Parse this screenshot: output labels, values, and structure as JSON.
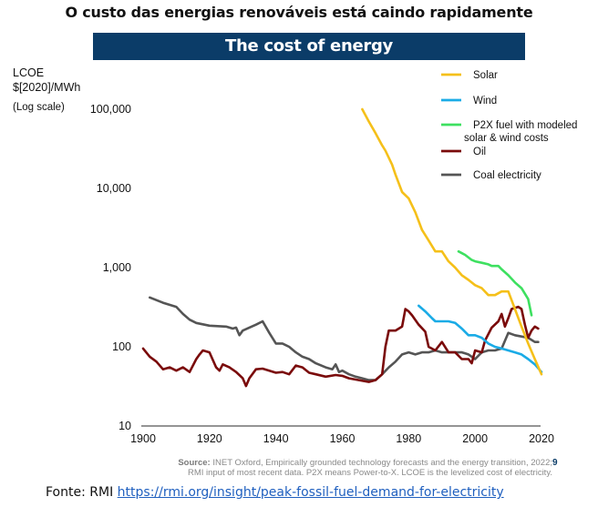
{
  "header": {
    "title": "O custo das energias renováveis está caindo rapidamente",
    "banner": "The cost of energy"
  },
  "axis": {
    "ylabel_line1": "LCOE",
    "ylabel_line2": "$[2020]/MWh",
    "ylabel_scale": "(Log scale)"
  },
  "source": {
    "label": "Source:",
    "text1": " INET Oxford, Empirically grounded technology forecasts and the energy transition, 2022;",
    "text2": "RMI input of most recent data. P2X means Power-to-X. LCOE is the levelized cost of electricity.",
    "page_number": "9"
  },
  "footer": {
    "prefix": "Fonte: RMI ",
    "link_text": "https://rmi.org/insight/peak-fossil-fuel-demand-for-electricity"
  },
  "chart_data": {
    "type": "line",
    "title": "The cost of energy",
    "xlabel": "",
    "ylabel": "LCOE $[2020]/MWh (Log scale)",
    "yscale": "log",
    "xlim": [
      1900,
      2020
    ],
    "ylim": [
      10,
      100000
    ],
    "x_ticks": [
      "1900",
      "1920",
      "1940",
      "1960",
      "1980",
      "2000",
      "2020"
    ],
    "y_ticks": [
      "10",
      "100",
      "1,000",
      "10,000",
      "100,000"
    ],
    "y_tick_values": [
      10,
      100,
      1000,
      10000,
      100000
    ],
    "grid": false,
    "legend_position": "top-right",
    "series": [
      {
        "name": "Solar",
        "color": "#f5c01a",
        "x": [
          1966,
          1968,
          1970,
          1972,
          1973,
          1975,
          1976,
          1978,
          1980,
          1982,
          1984,
          1986,
          1988,
          1990,
          1992,
          1994,
          1996,
          1998,
          2000,
          2002,
          2004,
          2006,
          2008,
          2010,
          2012,
          2014,
          2016,
          2018,
          2020
        ],
        "y": [
          100000,
          70000,
          50000,
          35000,
          30000,
          20000,
          15000,
          9000,
          7500,
          5000,
          3000,
          2200,
          1600,
          1600,
          1200,
          1000,
          800,
          700,
          600,
          550,
          450,
          450,
          500,
          500,
          300,
          180,
          110,
          70,
          45
        ]
      },
      {
        "name": "Wind",
        "color": "#1aabe6",
        "x": [
          1983,
          1985,
          1987,
          1988,
          1990,
          1992,
          1994,
          1996,
          1998,
          2000,
          2002,
          2004,
          2006,
          2008,
          2010,
          2012,
          2014,
          2016,
          2018,
          2020
        ],
        "y": [
          330,
          280,
          230,
          210,
          210,
          210,
          200,
          170,
          140,
          140,
          130,
          110,
          100,
          95,
          90,
          85,
          80,
          70,
          60,
          48
        ]
      },
      {
        "name": "P2X fuel with modeled solar & wind costs",
        "color": "#3ee060",
        "x": [
          1995,
          1997,
          1999,
          2000,
          2002,
          2004,
          2005,
          2007,
          2008,
          2010,
          2012,
          2014,
          2016,
          2017
        ],
        "y": [
          1600,
          1450,
          1250,
          1200,
          1150,
          1100,
          1050,
          1050,
          950,
          800,
          650,
          550,
          400,
          250
        ]
      },
      {
        "name": "Oil",
        "color": "#7a0a0a",
        "x": [
          1900,
          1902,
          1904,
          1906,
          1908,
          1910,
          1912,
          1914,
          1916,
          1917,
          1918,
          1920,
          1922,
          1923,
          1924,
          1926,
          1928,
          1930,
          1931,
          1932,
          1934,
          1936,
          1938,
          1940,
          1942,
          1944,
          1946,
          1948,
          1950,
          1952,
          1955,
          1958,
          1960,
          1962,
          1965,
          1968,
          1970,
          1972,
          1973,
          1974,
          1976,
          1978,
          1979,
          1980,
          1981,
          1983,
          1985,
          1986,
          1988,
          1990,
          1992,
          1994,
          1996,
          1998,
          1999,
          2000,
          2002,
          2003,
          2005,
          2007,
          2008,
          2009,
          2010,
          2011,
          2013,
          2014,
          2015,
          2016,
          2017,
          2018,
          2019
        ],
        "y": [
          95,
          75,
          65,
          52,
          55,
          50,
          55,
          48,
          70,
          80,
          90,
          85,
          55,
          50,
          60,
          55,
          48,
          40,
          32,
          40,
          52,
          53,
          50,
          47,
          48,
          45,
          58,
          55,
          47,
          45,
          42,
          44,
          43,
          40,
          38,
          36,
          38,
          45,
          100,
          160,
          160,
          180,
          300,
          280,
          250,
          190,
          155,
          100,
          90,
          115,
          85,
          85,
          70,
          70,
          62,
          90,
          85,
          120,
          175,
          210,
          260,
          180,
          230,
          300,
          320,
          300,
          190,
          130,
          160,
          180,
          170
        ]
      },
      {
        "name": "Coal electricity",
        "color": "#555555",
        "x": [
          1902,
          1906,
          1910,
          1912,
          1914,
          1916,
          1920,
          1925,
          1927,
          1928,
          1929,
          1930,
          1932,
          1934,
          1936,
          1938,
          1940,
          1942,
          1944,
          1946,
          1948,
          1950,
          1952,
          1955,
          1957,
          1958,
          1959,
          1960,
          1962,
          1964,
          1966,
          1968,
          1970,
          1972,
          1974,
          1976,
          1978,
          1980,
          1982,
          1984,
          1986,
          1988,
          1990,
          1992,
          1994,
          1996,
          1998,
          2000,
          2002,
          2004,
          2006,
          2008,
          2010,
          2012,
          2014,
          2016,
          2018,
          2019
        ],
        "y": [
          420,
          360,
          320,
          260,
          220,
          200,
          185,
          180,
          170,
          175,
          140,
          160,
          175,
          190,
          210,
          150,
          110,
          110,
          100,
          85,
          75,
          70,
          62,
          55,
          52,
          60,
          48,
          50,
          45,
          42,
          40,
          38,
          38,
          45,
          55,
          65,
          80,
          85,
          80,
          85,
          85,
          90,
          85,
          85,
          85,
          85,
          80,
          70,
          85,
          90,
          90,
          95,
          150,
          140,
          135,
          130,
          115,
          115
        ]
      }
    ]
  }
}
